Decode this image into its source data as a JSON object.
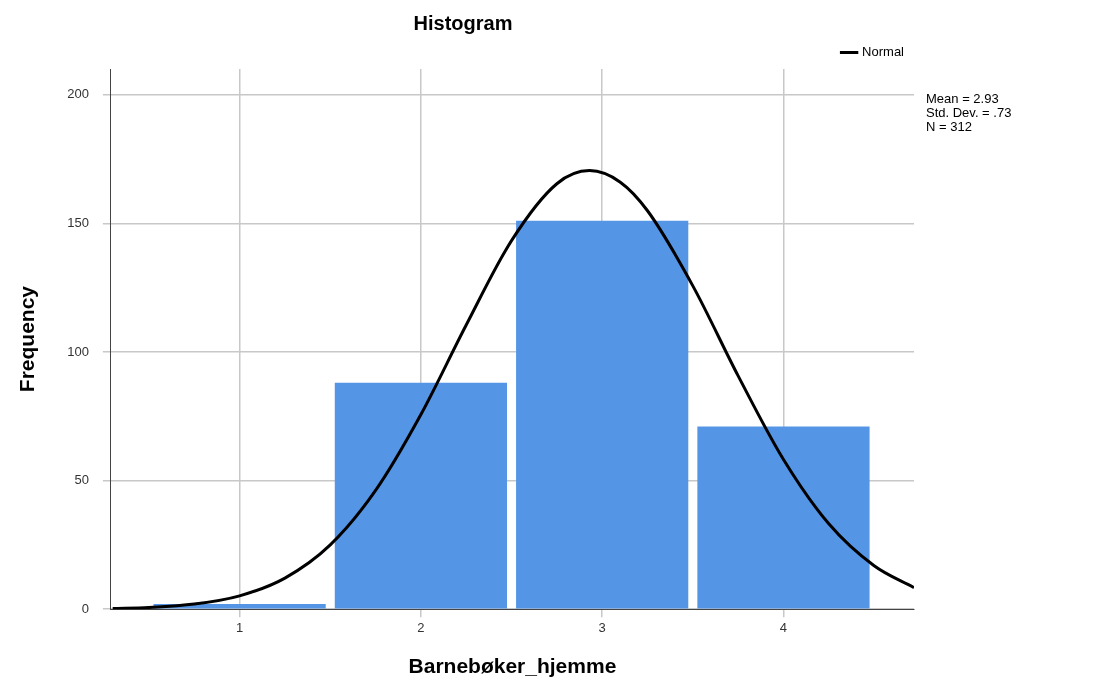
{
  "chart_data": {
    "type": "histogram",
    "title": "Histogram",
    "xlabel": "Barnebøker_hjemme",
    "ylabel": "Frequency",
    "bins": [
      0.5,
      1.5,
      2.5,
      3.5,
      4.5
    ],
    "values": [
      2,
      88,
      151,
      71
    ],
    "color": "#5595e5",
    "series": [
      {
        "name": "Normal",
        "type": "line",
        "color": "#000000",
        "x": [
          0.3,
          0.5,
          0.75,
          1,
          1.25,
          1.5,
          1.75,
          2,
          2.25,
          2.5,
          2.75,
          2.93,
          3.1,
          3.25,
          3.5,
          3.75,
          4,
          4.25,
          4.5,
          4.72
        ],
        "values": [
          0.3,
          0.7,
          2,
          5.2,
          12.1,
          25,
          46.2,
          75.7,
          110.5,
          143.3,
          165.4,
          170.5,
          166,
          154.9,
          125.7,
          90.7,
          58.2,
          33.2,
          16.9,
          8.4
        ]
      }
    ],
    "xlim": [
      0.29,
      4.72
    ],
    "ylim": [
      0,
      210
    ],
    "xticks": [
      1,
      2,
      3,
      4
    ],
    "yticks": [
      0,
      50,
      100,
      150,
      200
    ],
    "grid": true,
    "legend": "top right",
    "marker": "none",
    "line_style": "solid",
    "annotations": [
      "Mean = 2.93",
      "Std. Dev. = .73",
      "N = 312"
    ]
  }
}
